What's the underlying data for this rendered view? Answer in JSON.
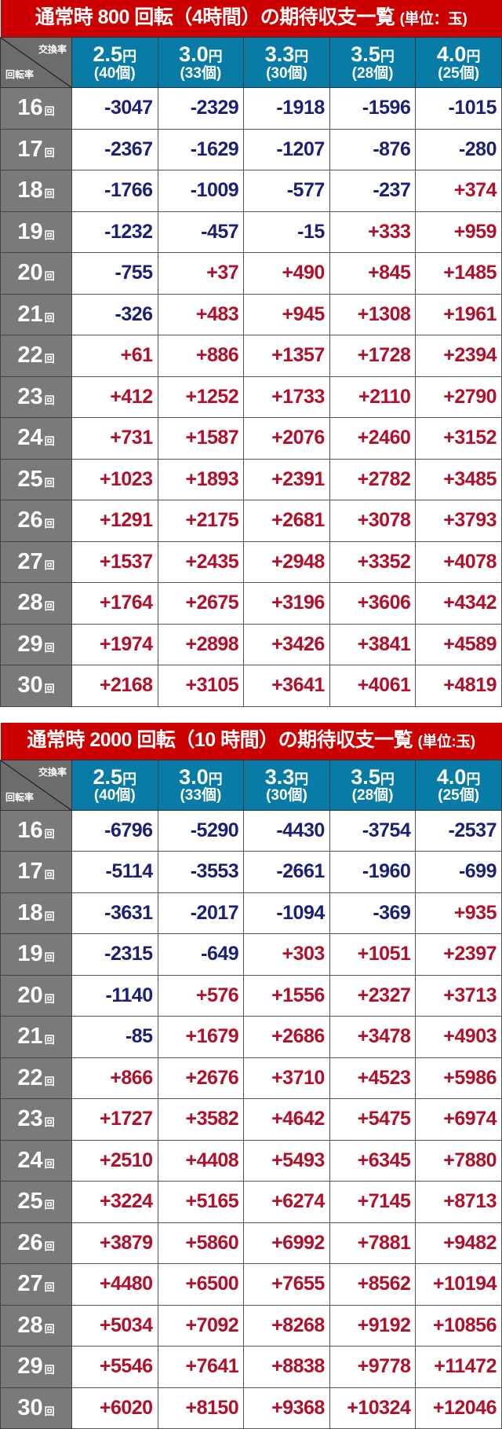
{
  "colors": {
    "title_bg": "#cc0000",
    "header_bg": "#087ba6",
    "row_label_bg": "#7a7a7a",
    "negative": "#1b1f78",
    "positive": "#b2102a"
  },
  "corner": {
    "top": "交換率",
    "bottom": "回転率"
  },
  "columns": [
    {
      "rate": "2.5",
      "yen": "円",
      "count": "(40個)"
    },
    {
      "rate": "3.0",
      "yen": "円",
      "count": "(33個)"
    },
    {
      "rate": "3.3",
      "yen": "円",
      "count": "(30個)"
    },
    {
      "rate": "3.5",
      "yen": "円",
      "count": "(28個)"
    },
    {
      "rate": "4.0",
      "yen": "円",
      "count": "(25個)"
    }
  ],
  "row_suffix": "回",
  "tables": [
    {
      "title": "通常時 800 回転（4時間）の期待収支一覧",
      "unit": "(単位：玉)",
      "rows": [
        {
          "label": "16",
          "values": [
            "-3047",
            "-2329",
            "-1918",
            "-1596",
            "-1015"
          ]
        },
        {
          "label": "17",
          "values": [
            "-2367",
            "-1629",
            "-1207",
            "-876",
            "-280"
          ]
        },
        {
          "label": "18",
          "values": [
            "-1766",
            "-1009",
            "-577",
            "-237",
            "+374"
          ]
        },
        {
          "label": "19",
          "values": [
            "-1232",
            "-457",
            "-15",
            "+333",
            "+959"
          ]
        },
        {
          "label": "20",
          "values": [
            "-755",
            "+37",
            "+490",
            "+845",
            "+1485"
          ]
        },
        {
          "label": "21",
          "values": [
            "-326",
            "+483",
            "+945",
            "+1308",
            "+1961"
          ]
        },
        {
          "label": "22",
          "values": [
            "+61",
            "+886",
            "+1357",
            "+1728",
            "+2394"
          ]
        },
        {
          "label": "23",
          "values": [
            "+412",
            "+1252",
            "+1733",
            "+2110",
            "+2790"
          ]
        },
        {
          "label": "24",
          "values": [
            "+731",
            "+1587",
            "+2076",
            "+2460",
            "+3152"
          ]
        },
        {
          "label": "25",
          "values": [
            "+1023",
            "+1893",
            "+2391",
            "+2782",
            "+3485"
          ]
        },
        {
          "label": "26",
          "values": [
            "+1291",
            "+2175",
            "+2681",
            "+3078",
            "+3793"
          ]
        },
        {
          "label": "27",
          "values": [
            "+1537",
            "+2435",
            "+2948",
            "+3352",
            "+4078"
          ]
        },
        {
          "label": "28",
          "values": [
            "+1764",
            "+2675",
            "+3196",
            "+3606",
            "+4342"
          ]
        },
        {
          "label": "29",
          "values": [
            "+1974",
            "+2898",
            "+3426",
            "+3841",
            "+4589"
          ]
        },
        {
          "label": "30",
          "values": [
            "+2168",
            "+3105",
            "+3641",
            "+4061",
            "+4819"
          ]
        }
      ]
    },
    {
      "title": "通常時 2000 回転（10 時間）の期待収支一覧",
      "unit": "(単位:玉)",
      "rows": [
        {
          "label": "16",
          "values": [
            "-6796",
            "-5290",
            "-4430",
            "-3754",
            "-2537"
          ]
        },
        {
          "label": "17",
          "values": [
            "-5114",
            "-3553",
            "-2661",
            "-1960",
            "-699"
          ]
        },
        {
          "label": "18",
          "values": [
            "-3631",
            "-2017",
            "-1094",
            "-369",
            "+935"
          ]
        },
        {
          "label": "19",
          "values": [
            "-2315",
            "-649",
            "+303",
            "+1051",
            "+2397"
          ]
        },
        {
          "label": "20",
          "values": [
            "-1140",
            "+576",
            "+1556",
            "+2327",
            "+3713"
          ]
        },
        {
          "label": "21",
          "values": [
            "-85",
            "+1679",
            "+2686",
            "+3478",
            "+4903"
          ]
        },
        {
          "label": "22",
          "values": [
            "+866",
            "+2676",
            "+3710",
            "+4523",
            "+5986"
          ]
        },
        {
          "label": "23",
          "values": [
            "+1727",
            "+3582",
            "+4642",
            "+5475",
            "+6974"
          ]
        },
        {
          "label": "24",
          "values": [
            "+2510",
            "+4408",
            "+5493",
            "+6345",
            "+7880"
          ]
        },
        {
          "label": "25",
          "values": [
            "+3224",
            "+5165",
            "+6274",
            "+7145",
            "+8713"
          ]
        },
        {
          "label": "26",
          "values": [
            "+3879",
            "+5860",
            "+6992",
            "+7881",
            "+9482"
          ]
        },
        {
          "label": "27",
          "values": [
            "+4480",
            "+6500",
            "+7655",
            "+8562",
            "+10194"
          ]
        },
        {
          "label": "28",
          "values": [
            "+5034",
            "+7092",
            "+8268",
            "+9192",
            "+10856"
          ]
        },
        {
          "label": "29",
          "values": [
            "+5546",
            "+7641",
            "+8838",
            "+9778",
            "+11472"
          ]
        },
        {
          "label": "30",
          "values": [
            "+6020",
            "+8150",
            "+9368",
            "+10324",
            "+12046"
          ]
        }
      ]
    }
  ]
}
